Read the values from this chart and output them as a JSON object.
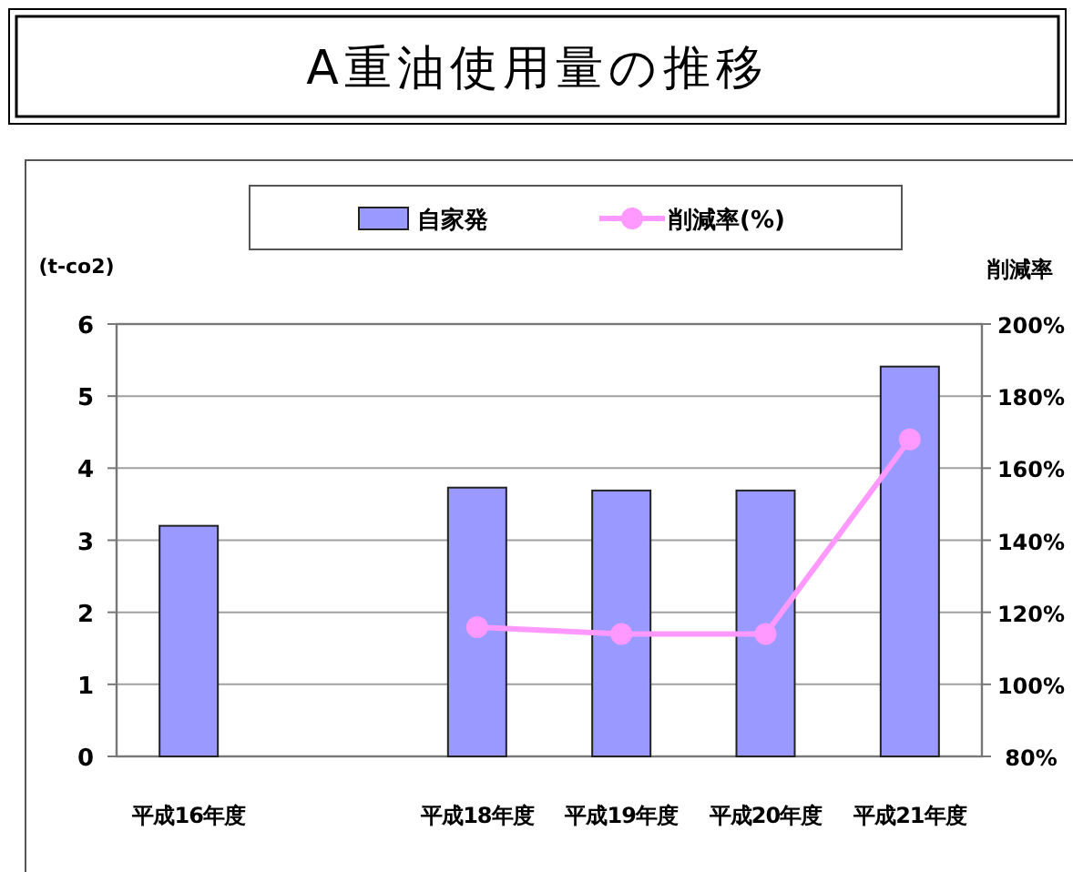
{
  "chart_data": {
    "type": "bar",
    "title": "A重油使用量の推移",
    "categories": [
      "平成16年度",
      null,
      "平成18年度",
      "平成19年度",
      "平成20年度",
      "平成21年度"
    ],
    "series": [
      {
        "name": "自家発",
        "color": "#9999ff",
        "values": [
          3.2,
          null,
          3.73,
          3.69,
          3.69,
          5.41
        ]
      },
      {
        "name": "削減率(%)",
        "type": "line",
        "axis": "y2",
        "color": "#ff99ff",
        "values": [
          null,
          null,
          115.9,
          114,
          114,
          168
        ]
      }
    ],
    "ylabel": "(t-co2)",
    "y2label": "削減率",
    "ylim": [
      0,
      6
    ],
    "yticks": [
      0,
      1,
      2,
      3,
      4,
      5,
      6
    ],
    "y2lim": [
      80,
      200
    ],
    "y2ticks": [
      {
        "value": 80,
        "label": "80%"
      },
      {
        "value": 100,
        "label": "100%"
      },
      {
        "value": 120,
        "label": "120%"
      },
      {
        "value": 140,
        "label": "140%"
      },
      {
        "value": 160,
        "label": "160%"
      },
      {
        "value": 180,
        "label": "180%"
      },
      {
        "value": 200,
        "label": "200%"
      }
    ],
    "grid": "y",
    "legend": "top",
    "marker": "circle"
  }
}
